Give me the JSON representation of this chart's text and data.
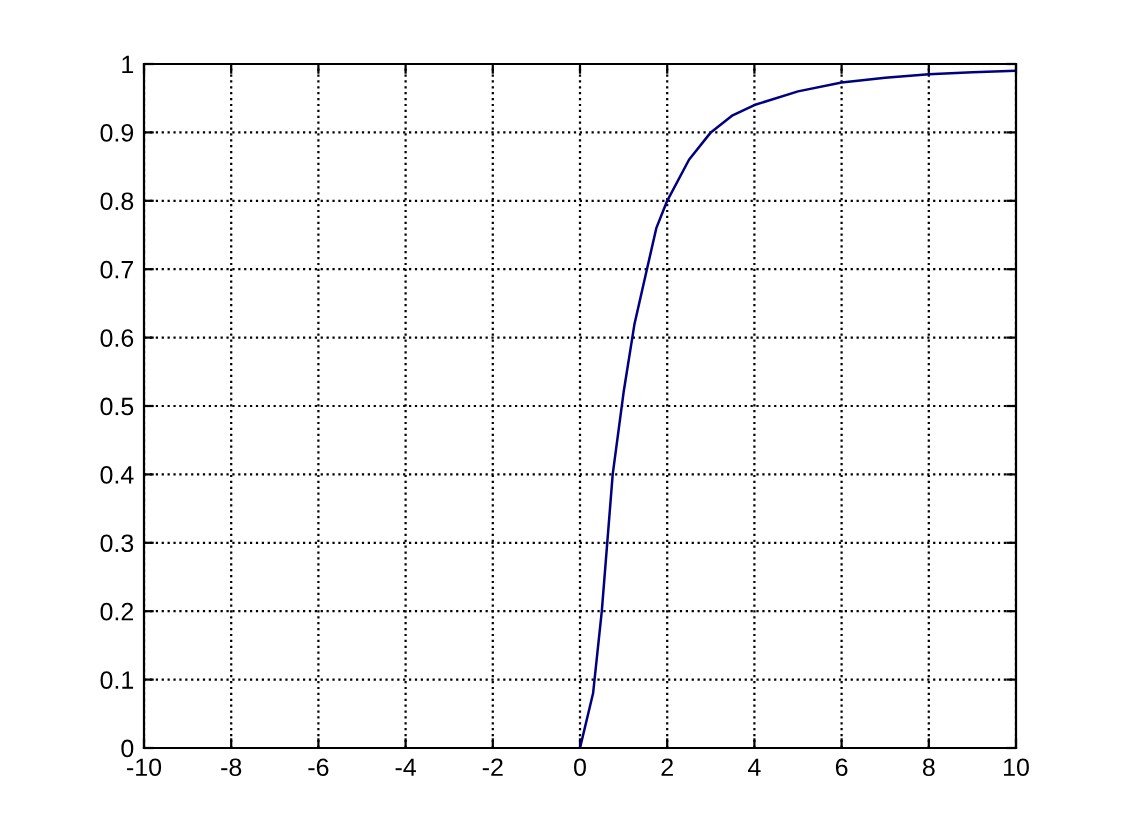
{
  "chart_data": {
    "type": "line",
    "x": [
      0,
      0.3,
      0.5,
      0.75,
      1,
      1.25,
      1.5,
      1.75,
      2,
      2.5,
      3,
      3.5,
      4,
      5,
      6,
      7,
      8,
      9,
      10
    ],
    "series": [
      {
        "color": "#000080",
        "values": [
          0,
          0.08,
          0.2,
          0.4,
          0.52,
          0.62,
          0.69,
          0.76,
          0.8,
          0.86,
          0.9,
          0.925,
          0.94,
          0.96,
          0.973,
          0.98,
          0.985,
          0.988,
          0.99
        ]
      }
    ],
    "xlim": [
      -10,
      10
    ],
    "xticks": [
      -10,
      -8,
      -6,
      -4,
      -2,
      0,
      2,
      4,
      6,
      8,
      10
    ],
    "ylim": [
      0,
      1
    ],
    "yticks": [
      0,
      0.1,
      0.2,
      0.3,
      0.4,
      0.5,
      0.6,
      0.7,
      0.8,
      0.9,
      1
    ],
    "grid": true,
    "marker": "none",
    "line_style": "solid"
  }
}
